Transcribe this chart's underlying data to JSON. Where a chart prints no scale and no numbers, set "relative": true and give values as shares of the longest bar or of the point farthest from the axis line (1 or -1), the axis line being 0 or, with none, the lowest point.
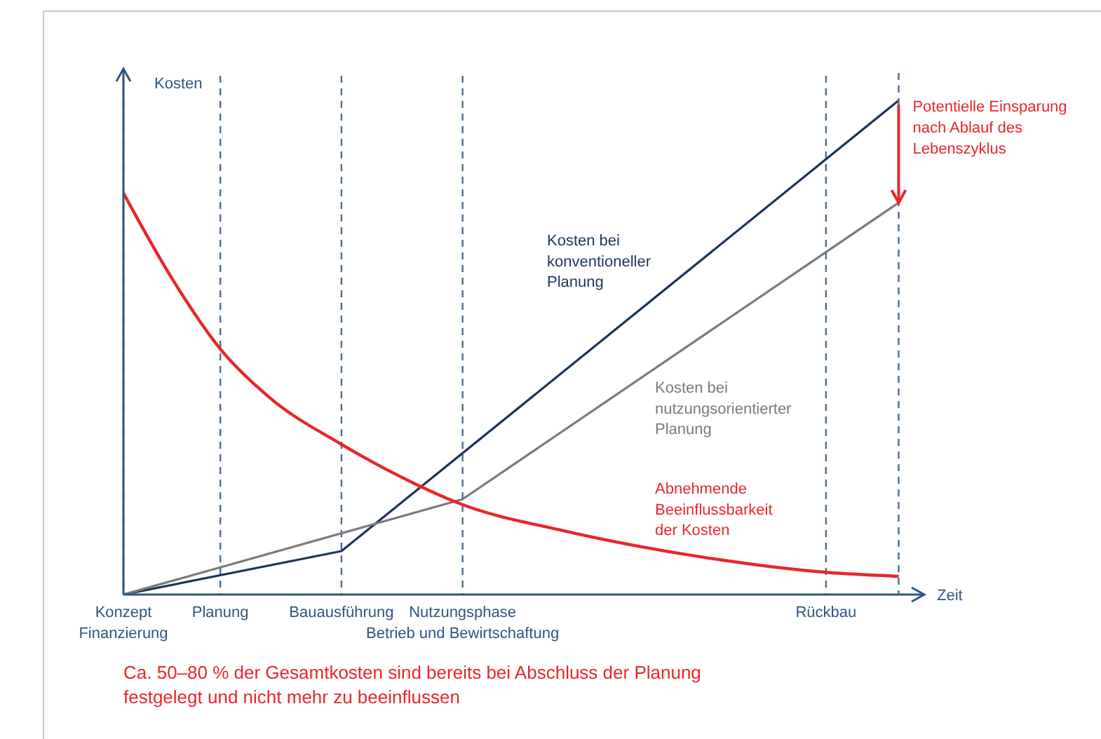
{
  "chart_data": {
    "type": "line",
    "relative": true,
    "xlabel": "Zeit",
    "ylabel": "Kosten",
    "categories": [
      "Konzept\nFinanzierung",
      null,
      null,
      null,
      "Planung",
      null,
      null,
      null,
      null,
      "Bauausführung",
      null,
      null,
      null,
      null,
      "Nutzungsphase\nBetrieb und Bewirtschaftung",
      null,
      null,
      null,
      null,
      null,
      null,
      null,
      null,
      null,
      null,
      null,
      null,
      null,
      null,
      "Rückbau",
      null,
      null,
      null,
      null
    ],
    "series": [
      {
        "name": "Kosten bei\nkonventioneller\nPlanung",
        "color": "#1c3557",
        "values": [
          0,
          null,
          null,
          null,
          null,
          null,
          null,
          null,
          null,
          0.088,
          null,
          null,
          null,
          null,
          null,
          null,
          null,
          null,
          null,
          null,
          null,
          null,
          null,
          null,
          null,
          null,
          null,
          null,
          null,
          null,
          null,
          null,
          1,
          null
        ]
      },
      {
        "name": "Kosten bei\nnutzungsorientierter\nPlanung",
        "color": "#7a7a7a",
        "values": [
          0,
          null,
          null,
          null,
          null,
          null,
          null,
          null,
          null,
          null,
          null,
          null,
          null,
          null,
          0.193,
          null,
          null,
          null,
          null,
          null,
          null,
          null,
          null,
          null,
          null,
          null,
          null,
          null,
          null,
          null,
          null,
          null,
          0.793,
          null
        ]
      },
      {
        "name": "Abnehmende\nBeeinflussbarkeit\nder Kosten",
        "color": "#e8262b",
        "values": [
          0.8125,
          null,
          0.64,
          null,
          0.497,
          null,
          0.4,
          null,
          null,
          0.304,
          null,
          null,
          0.225,
          null,
          0.182,
          null,
          null,
          null,
          0.131,
          null,
          null,
          null,
          null,
          null,
          0.075,
          null,
          null,
          null,
          null,
          0.045,
          null,
          null,
          0.037,
          null
        ]
      }
    ],
    "grid": "x",
    "annotations": [
      "Potentielle Einsparung\nnach Ablauf des\nLebenszyklus",
      "Ca. 50–80 % der Gesamtkosten sind bereits bei Abschluss der Planung\nfestgelegt und nicht mehr zu beeinflussen"
    ],
    "marker": "none",
    "line_style": "solid"
  }
}
